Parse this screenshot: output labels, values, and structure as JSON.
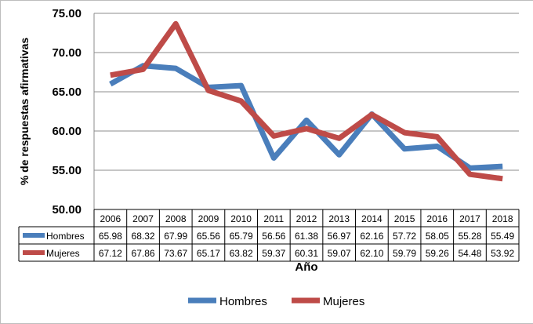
{
  "chart_data": {
    "type": "line",
    "ylabel": "% de respuestas afirmativas",
    "xlabel": "Año",
    "ylim": [
      50,
      75
    ],
    "y_ticks": [
      "50.00",
      "55.00",
      "60.00",
      "65.00",
      "70.00",
      "75.00"
    ],
    "grid": "horizontal",
    "legend_position": "bottom",
    "categories": [
      "2006",
      "2007",
      "2008",
      "2009",
      "2010",
      "2011",
      "2012",
      "2013",
      "2014",
      "2015",
      "2016",
      "2017",
      "2018"
    ],
    "series": [
      {
        "name": "Hombres",
        "color": "#4a7ebb",
        "values": [
          65.98,
          68.32,
          67.99,
          65.56,
          65.79,
          56.56,
          61.38,
          56.97,
          62.16,
          57.72,
          58.05,
          55.28,
          55.49
        ],
        "labels": [
          "65.98",
          "68.32",
          "67.99",
          "65.56",
          "65.79",
          "56.56",
          "61.38",
          "56.97",
          "62.16",
          "57.72",
          "58.05",
          "55.28",
          "55.49"
        ]
      },
      {
        "name": "Mujeres",
        "color": "#be4b48",
        "values": [
          67.12,
          67.86,
          73.67,
          65.17,
          63.82,
          59.37,
          60.31,
          59.07,
          62.1,
          59.79,
          59.26,
          54.48,
          53.92
        ],
        "labels": [
          "67.12",
          "67.86",
          "73.67",
          "65.17",
          "63.82",
          "59.37",
          "60.31",
          "59.07",
          "62.10",
          "59.79",
          "59.26",
          "54.48",
          "53.92"
        ]
      }
    ]
  }
}
